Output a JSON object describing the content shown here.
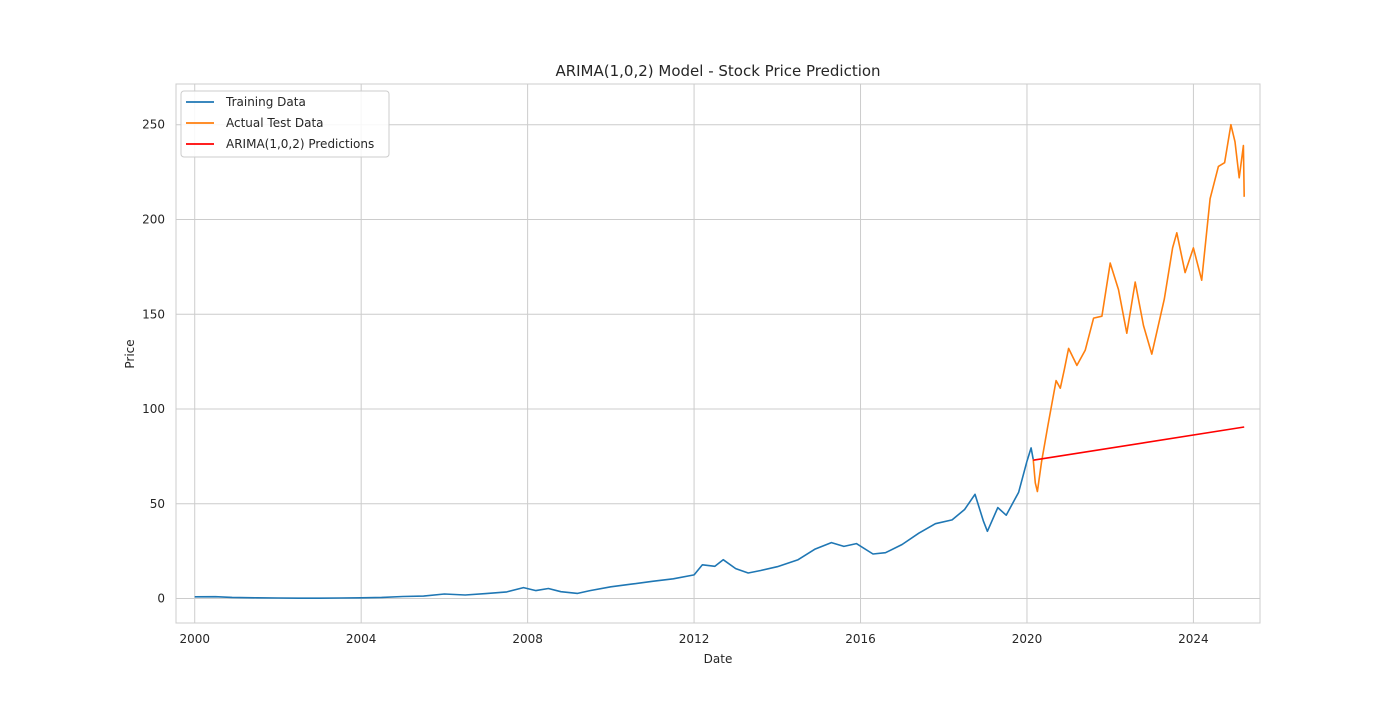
{
  "chart_data": {
    "type": "line",
    "title": "ARIMA(1,0,2) Model - Stock Price Prediction",
    "xlabel": "Date",
    "ylabel": "Price",
    "xlim": [
      1999.55,
      2025.6
    ],
    "ylim": [
      -12.9,
      271.5
    ],
    "x_ticks": [
      2000,
      2004,
      2008,
      2012,
      2016,
      2020,
      2024
    ],
    "x_tick_labels": [
      "2000",
      "2004",
      "2008",
      "2012",
      "2016",
      "2020",
      "2024"
    ],
    "y_ticks": [
      0,
      50,
      100,
      150,
      200,
      250
    ],
    "y_tick_labels": [
      "0",
      "50",
      "100",
      "150",
      "200",
      "250"
    ],
    "grid": true,
    "legend_position": "top-left",
    "series": [
      {
        "name": "Training Data",
        "color": "#1f77b4",
        "points": [
          [
            2000.0,
            0.9
          ],
          [
            2000.5,
            1.0
          ],
          [
            2000.9,
            0.6
          ],
          [
            2001.5,
            0.4
          ],
          [
            2002.0,
            0.3
          ],
          [
            2002.5,
            0.2
          ],
          [
            2003.0,
            0.2
          ],
          [
            2003.5,
            0.3
          ],
          [
            2004.0,
            0.4
          ],
          [
            2004.5,
            0.6
          ],
          [
            2005.0,
            1.1
          ],
          [
            2005.5,
            1.3
          ],
          [
            2006.0,
            2.4
          ],
          [
            2006.5,
            1.9
          ],
          [
            2007.0,
            2.6
          ],
          [
            2007.5,
            3.5
          ],
          [
            2007.9,
            5.8
          ],
          [
            2008.2,
            4.2
          ],
          [
            2008.5,
            5.3
          ],
          [
            2008.8,
            3.6
          ],
          [
            2009.2,
            2.7
          ],
          [
            2009.5,
            4.2
          ],
          [
            2010.0,
            6.2
          ],
          [
            2010.5,
            7.6
          ],
          [
            2011.0,
            9.1
          ],
          [
            2011.5,
            10.4
          ],
          [
            2012.0,
            12.5
          ],
          [
            2012.2,
            17.8
          ],
          [
            2012.5,
            17.0
          ],
          [
            2012.7,
            20.5
          ],
          [
            2013.0,
            15.8
          ],
          [
            2013.3,
            13.5
          ],
          [
            2013.6,
            14.8
          ],
          [
            2014.0,
            16.8
          ],
          [
            2014.5,
            20.5
          ],
          [
            2014.9,
            26.0
          ],
          [
            2015.3,
            29.5
          ],
          [
            2015.6,
            27.5
          ],
          [
            2015.9,
            29.0
          ],
          [
            2016.3,
            23.5
          ],
          [
            2016.6,
            24.2
          ],
          [
            2017.0,
            28.5
          ],
          [
            2017.4,
            34.5
          ],
          [
            2017.8,
            39.5
          ],
          [
            2018.2,
            41.5
          ],
          [
            2018.5,
            47.0
          ],
          [
            2018.75,
            55.0
          ],
          [
            2018.95,
            41.0
          ],
          [
            2019.05,
            35.5
          ],
          [
            2019.3,
            48.0
          ],
          [
            2019.5,
            44.0
          ],
          [
            2019.8,
            56.0
          ],
          [
            2020.0,
            72.5
          ],
          [
            2020.1,
            79.5
          ],
          [
            2020.15,
            73.5
          ]
        ]
      },
      {
        "name": "Actual Test Data",
        "color": "#ff7f0e",
        "points": [
          [
            2020.15,
            73.5
          ],
          [
            2020.2,
            61.0
          ],
          [
            2020.25,
            56.5
          ],
          [
            2020.35,
            72.0
          ],
          [
            2020.5,
            91.0
          ],
          [
            2020.7,
            115.0
          ],
          [
            2020.8,
            111.0
          ],
          [
            2020.9,
            121.0
          ],
          [
            2021.0,
            132.0
          ],
          [
            2021.2,
            123.0
          ],
          [
            2021.4,
            131.0
          ],
          [
            2021.6,
            148.0
          ],
          [
            2021.8,
            149.0
          ],
          [
            2022.0,
            177.0
          ],
          [
            2022.2,
            163.0
          ],
          [
            2022.4,
            140.0
          ],
          [
            2022.6,
            167.0
          ],
          [
            2022.8,
            144.0
          ],
          [
            2023.0,
            129.0
          ],
          [
            2023.3,
            158.0
          ],
          [
            2023.5,
            185.0
          ],
          [
            2023.6,
            193.0
          ],
          [
            2023.8,
            172.0
          ],
          [
            2024.0,
            185.0
          ],
          [
            2024.2,
            168.0
          ],
          [
            2024.4,
            211.0
          ],
          [
            2024.6,
            228.0
          ],
          [
            2024.75,
            230.0
          ],
          [
            2024.9,
            250.0
          ],
          [
            2025.0,
            241.0
          ],
          [
            2025.1,
            222.0
          ],
          [
            2025.2,
            239.0
          ],
          [
            2025.22,
            212.0
          ]
        ]
      },
      {
        "name": "ARIMA(1,0,2) Predictions",
        "color": "#ff0000",
        "points": [
          [
            2020.15,
            73.0
          ],
          [
            2025.22,
            90.5
          ]
        ]
      }
    ]
  }
}
